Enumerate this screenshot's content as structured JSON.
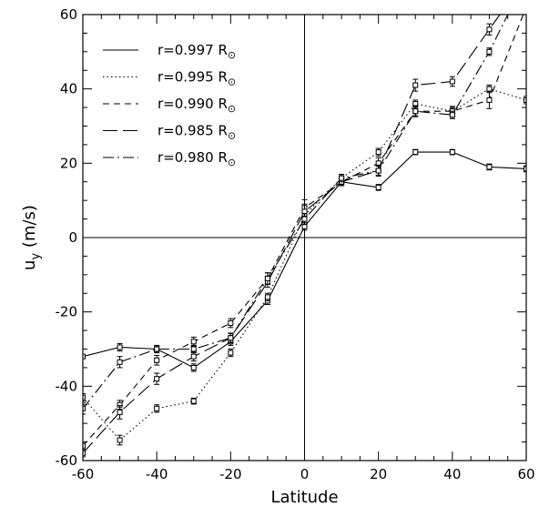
{
  "chart_data": {
    "type": "line",
    "xlabel": "Latitude",
    "ylabel_main": "u",
    "ylabel_sub": "y",
    "ylabel_unit": "(m/s)",
    "xlim": [
      -60,
      60
    ],
    "ylim": [
      -60,
      60
    ],
    "xticks": [
      -60,
      -40,
      -20,
      0,
      20,
      40,
      60
    ],
    "yticks": [
      -60,
      -40,
      -20,
      0,
      20,
      40,
      60
    ],
    "minor_step": 5,
    "zero_lines": true,
    "legend_position": "top-left",
    "x": [
      -60,
      -50,
      -40,
      -30,
      -20,
      -10,
      0,
      10,
      20,
      30,
      40,
      50,
      60
    ],
    "series": [
      {
        "name": "r=0.997 R",
        "symbol": "⊙",
        "style": "solid",
        "values": [
          -32,
          -29.5,
          -30,
          -35,
          -28,
          -17,
          3,
          15,
          13.5,
          23,
          23,
          19,
          18.5
        ],
        "errors": [
          0.5,
          1,
          0.7,
          1,
          1,
          1,
          1,
          1,
          0.8,
          0.7,
          0.7,
          0.8,
          0.8
        ]
      },
      {
        "name": "r=0.995 R",
        "symbol": "⊙",
        "style": "dotted",
        "values": [
          -43,
          -54.5,
          -46,
          -44,
          -31,
          -16,
          6,
          16,
          23,
          36,
          34,
          40,
          37
        ],
        "errors": [
          1,
          1.3,
          1,
          0.8,
          1,
          1,
          1.3,
          1,
          1,
          1,
          1,
          1,
          1
        ]
      },
      {
        "name": "r=0.990 R",
        "symbol": "⊙",
        "style": "dashed",
        "values": [
          -56,
          -45,
          -33,
          -28,
          -23,
          -11,
          8,
          15,
          20,
          34,
          34,
          37,
          62
        ],
        "errors": [
          1,
          1.2,
          1.3,
          1.2,
          1.2,
          1.5,
          2.2,
          1,
          1.5,
          1.5,
          1.3,
          2.3,
          1
        ]
      },
      {
        "name": "r=0.985 R",
        "symbol": "⊙",
        "style": "longdash",
        "values": [
          -58,
          -47,
          -38,
          -32,
          -27,
          -12,
          7,
          15,
          18,
          41,
          42,
          56,
          70
        ],
        "errors": [
          1,
          1.8,
          1.5,
          1.2,
          1.2,
          1.4,
          2,
          1,
          1.5,
          1.6,
          1.3,
          1.5,
          1
        ]
      },
      {
        "name": "r=0.980 R",
        "symbol": "⊙",
        "style": "dashdot",
        "values": [
          -46,
          -33.5,
          -30,
          -30,
          -27,
          -11,
          5,
          16,
          18,
          34,
          33,
          50,
          70
        ],
        "errors": [
          1.5,
          1.5,
          1,
          1,
          1.3,
          1.5,
          1.5,
          1,
          1.2,
          1.2,
          1,
          1,
          1
        ]
      }
    ]
  }
}
